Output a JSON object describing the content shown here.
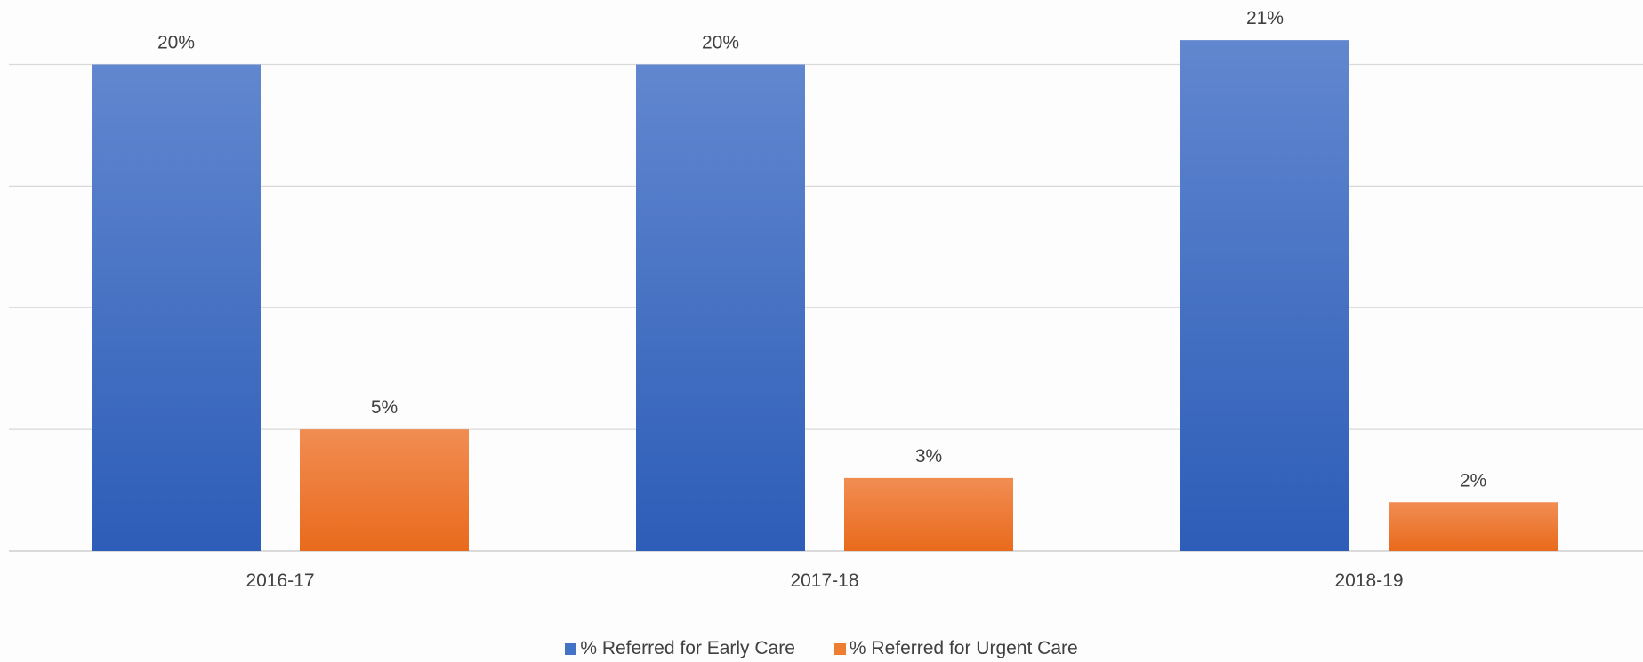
{
  "chart_data": {
    "type": "bar",
    "title": "",
    "xlabel": "",
    "ylabel": "",
    "categories": [
      "2016-17",
      "2017-18",
      "2018-19"
    ],
    "series": [
      {
        "name": "% Referred for Early Care",
        "values": [
          20,
          20,
          21
        ],
        "labels": [
          "20%",
          "20%",
          "21%"
        ],
        "color": "#4472C4"
      },
      {
        "name": "% Referred for Urgent Care",
        "values": [
          5,
          3,
          2
        ],
        "labels": [
          "5%",
          "3%",
          "2%"
        ],
        "color": "#ED7D31"
      }
    ],
    "ylim": [
      0,
      25
    ],
    "y_gridlines": [
      0,
      5,
      10,
      15,
      20,
      25
    ],
    "y_tick_labels_shown": false,
    "grid": true,
    "legend_position": "bottom"
  }
}
